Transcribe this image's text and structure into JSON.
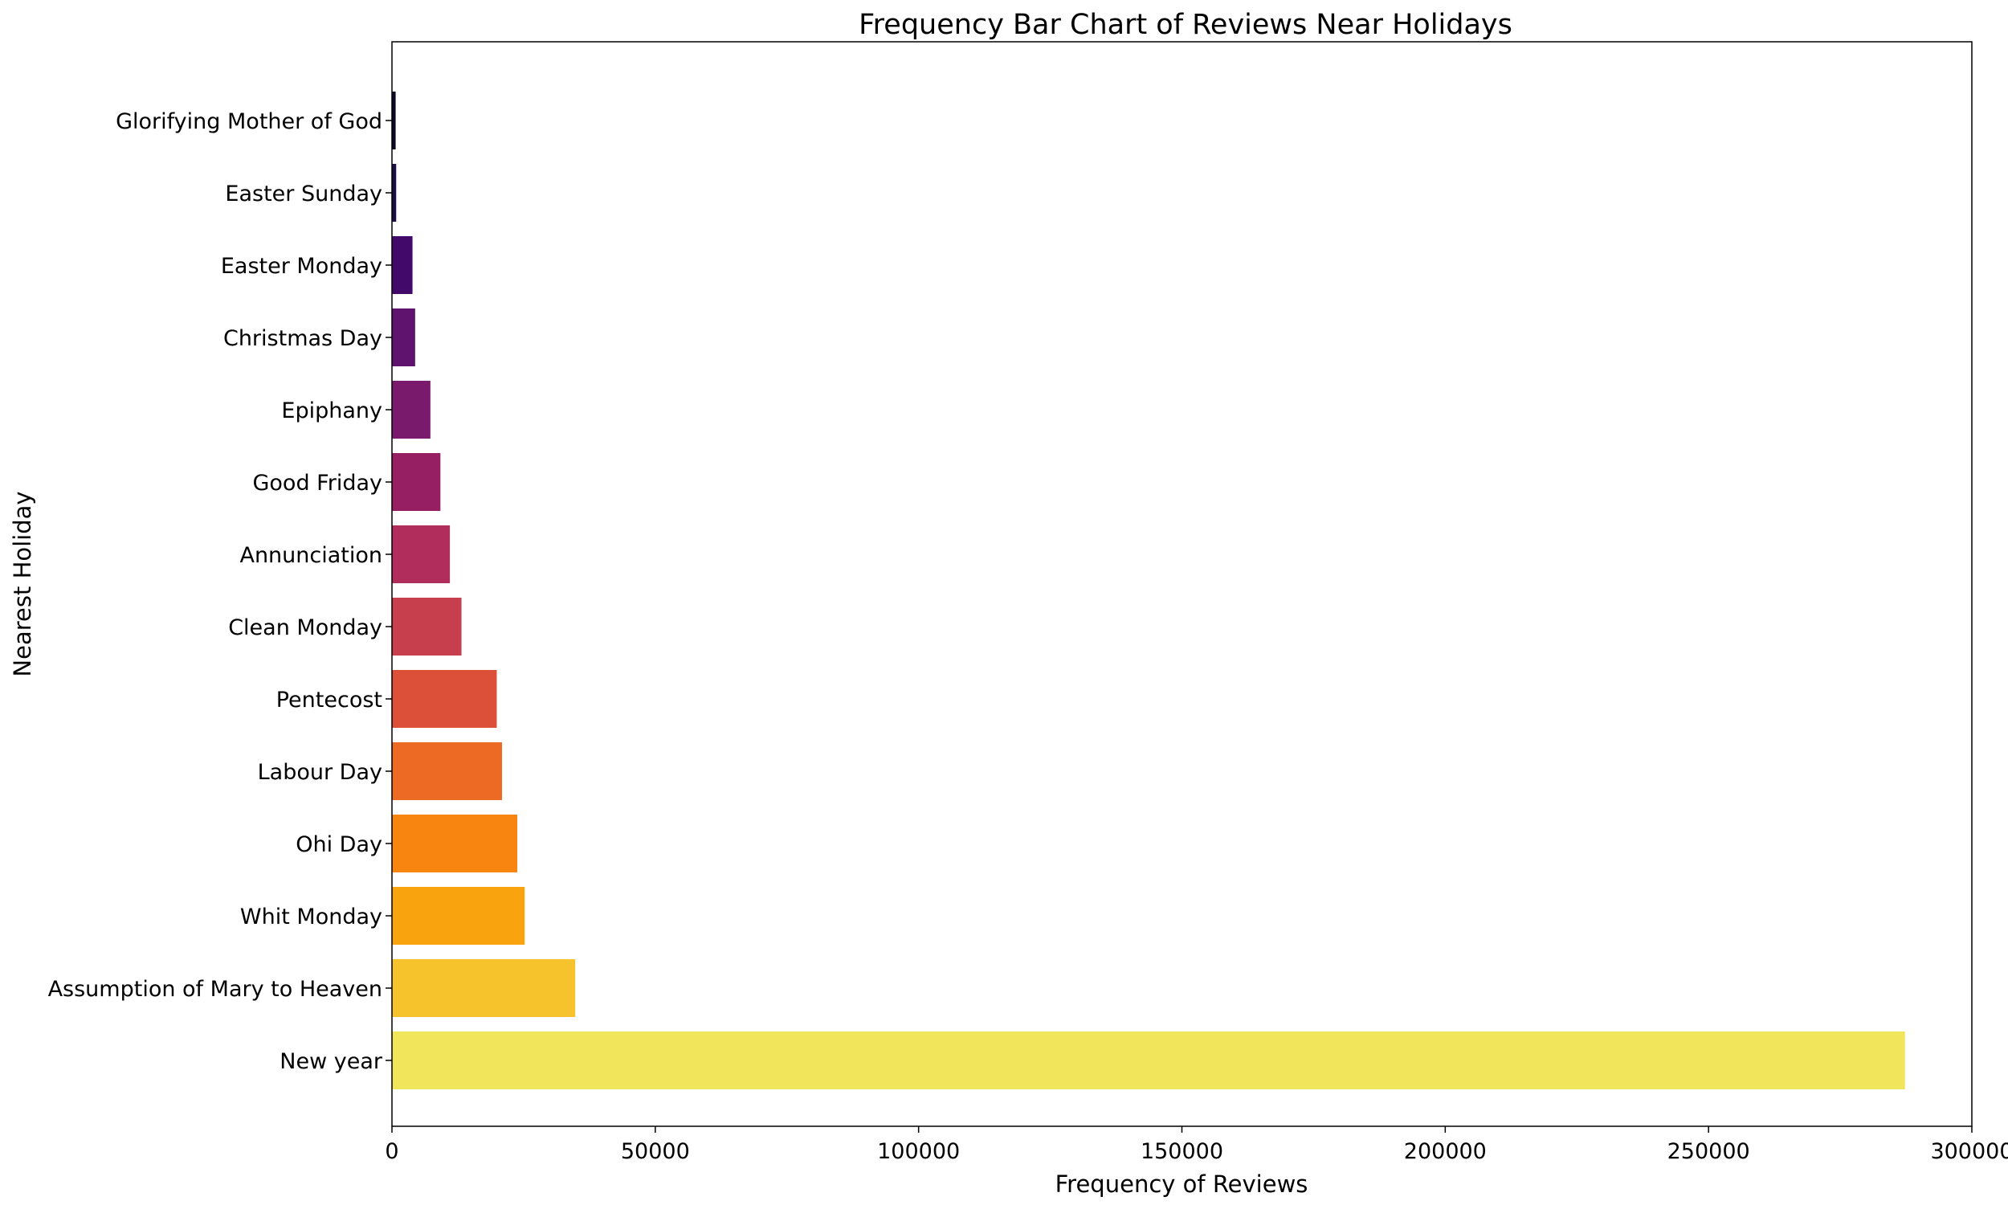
{
  "chart_data": {
    "type": "bar",
    "orientation": "horizontal",
    "title": "Frequency Bar Chart of Reviews Near Holidays",
    "xlabel": "Frequency of Reviews",
    "ylabel": "Nearest Holiday",
    "xlim": [
      0,
      300000
    ],
    "xticks": [
      0,
      50000,
      100000,
      150000,
      200000,
      250000,
      300000
    ],
    "grid": false,
    "categories": [
      "New year",
      "Assumption of Mary to Heaven",
      "Whit Monday",
      "Ohi Day",
      "Labour Day",
      "Pentecost",
      "Clean Monday",
      "Annunciation",
      "Good Friday",
      "Epiphany",
      "Christmas Day",
      "Easter Monday",
      "Easter Sunday",
      "Glorifying Mother of God"
    ],
    "values": [
      287300,
      34800,
      25200,
      23800,
      20900,
      19900,
      13200,
      11000,
      9200,
      7300,
      4400,
      3900,
      800,
      700
    ],
    "colors": [
      "#f1e55c",
      "#f7c32c",
      "#f9a40e",
      "#f8850f",
      "#ed6a25",
      "#dc5039",
      "#c73e4c",
      "#b12d5c",
      "#961f64",
      "#7a1a6c",
      "#5f126e",
      "#42096b",
      "#1e0c44",
      "#0c0826"
    ]
  }
}
